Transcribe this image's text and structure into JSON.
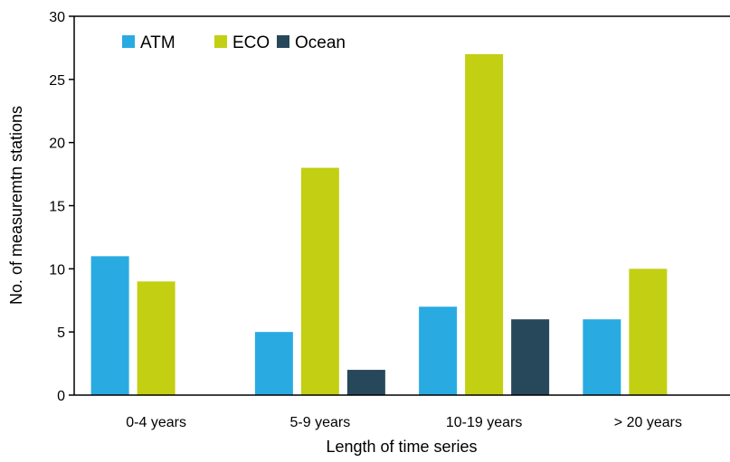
{
  "chart_data": {
    "type": "bar",
    "categories": [
      "0-4 years",
      "5-9 years",
      "10-19 years",
      "> 20 years"
    ],
    "series": [
      {
        "name": "ATM",
        "values": [
          11,
          5,
          7,
          6
        ],
        "color": "#29ABE2"
      },
      {
        "name": "ECO",
        "values": [
          9,
          18,
          27,
          10
        ],
        "color": "#C3CF12"
      },
      {
        "name": "Ocean",
        "values": [
          0,
          2,
          6,
          0
        ],
        "color": "#27485B"
      }
    ],
    "xlabel": "Length of time series",
    "ylabel": "No. of measuremtn stations",
    "ylim": [
      0,
      30
    ],
    "yticks": [
      "0",
      "5",
      "10",
      "15",
      "20",
      "25",
      "30"
    ],
    "grid": false,
    "legend_position": "top-left"
  }
}
